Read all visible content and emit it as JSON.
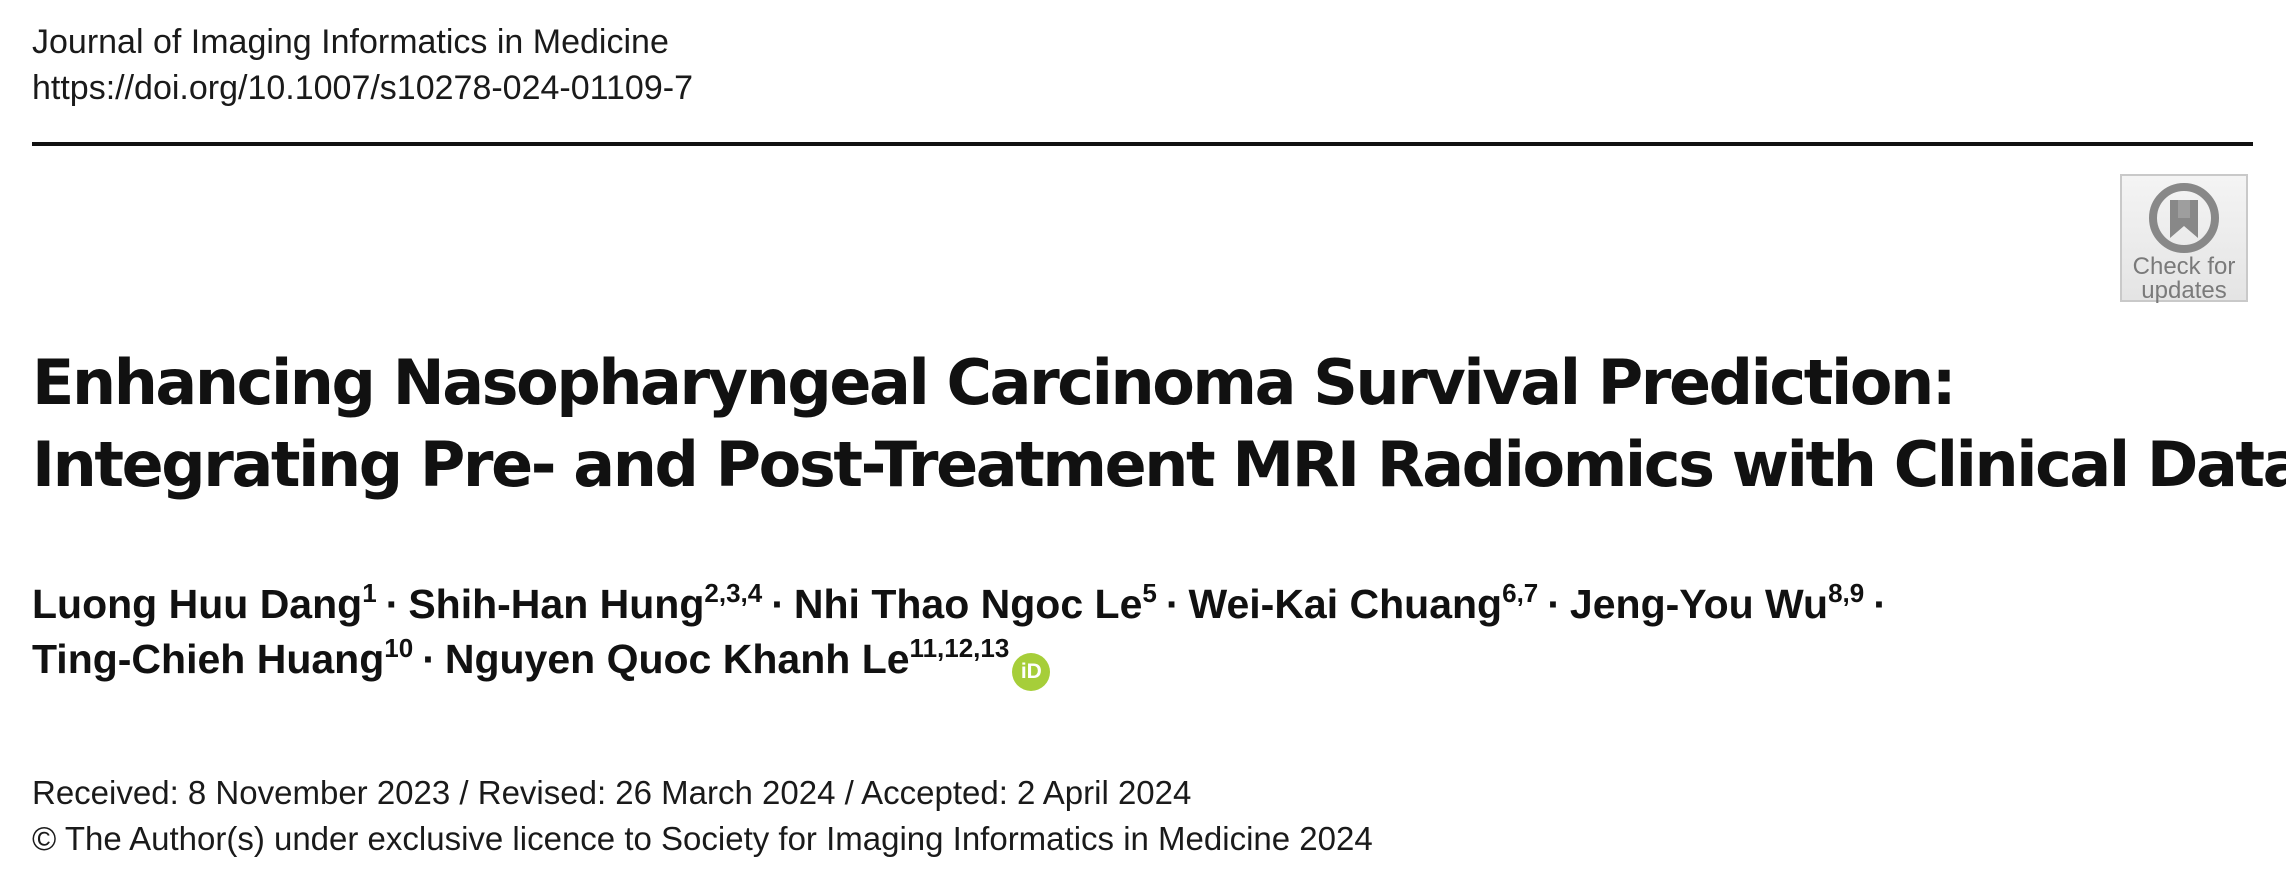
{
  "header": {
    "journal": "Journal of Imaging Informatics in Medicine",
    "doi": "https://doi.org/10.1007/s10278-024-01109-7"
  },
  "badge": {
    "icon": "crossmark-icon",
    "line1": "Check for",
    "line2": "updates",
    "color": "#7a7a7a"
  },
  "title": {
    "line1": "Enhancing Nasopharyngeal Carcinoma Survival Prediction:",
    "line2": "Integrating Pre- and Post-Treatment MRI Radiomics with Clinical Data"
  },
  "authors": [
    {
      "name": "Luong Huu Dang",
      "aff": "1"
    },
    {
      "name": "Shih-Han Hung",
      "aff": "2,3,4"
    },
    {
      "name": "Nhi Thao Ngoc Le",
      "aff": "5"
    },
    {
      "name": "Wei-Kai Chuang",
      "aff": "6,7"
    },
    {
      "name": "Jeng-You Wu",
      "aff": "8,9"
    },
    {
      "name": "Ting-Chieh Huang",
      "aff": "10"
    },
    {
      "name": "Nguyen Quoc Khanh Le",
      "aff": "11,12,13"
    }
  ],
  "separator": "·",
  "orcid": {
    "label": "iD",
    "color": "#a6ce39"
  },
  "dates": {
    "history": "Received: 8 November 2023 / Revised: 26 March 2024 / Accepted: 2 April 2024",
    "copyright": "© The Author(s) under exclusive licence to Society for Imaging Informatics in Medicine 2024"
  }
}
